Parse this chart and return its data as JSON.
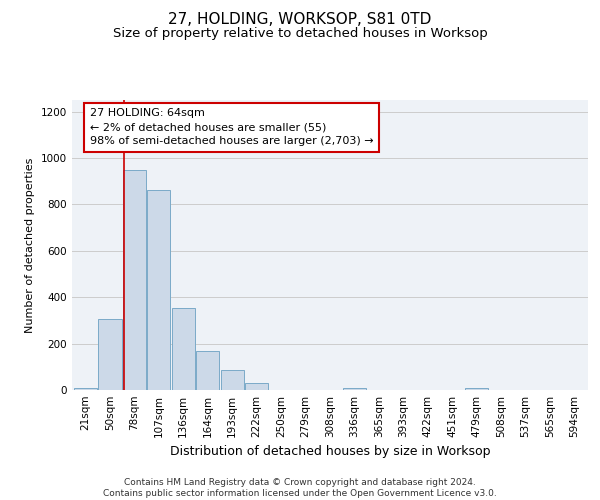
{
  "title1": "27, HOLDING, WORKSOP, S81 0TD",
  "title2": "Size of property relative to detached houses in Worksop",
  "xlabel": "Distribution of detached houses by size in Worksop",
  "ylabel": "Number of detached properties",
  "bin_labels": [
    "21sqm",
    "50sqm",
    "78sqm",
    "107sqm",
    "136sqm",
    "164sqm",
    "193sqm",
    "222sqm",
    "250sqm",
    "279sqm",
    "308sqm",
    "336sqm",
    "365sqm",
    "393sqm",
    "422sqm",
    "451sqm",
    "479sqm",
    "508sqm",
    "537sqm",
    "565sqm",
    "594sqm"
  ],
  "bar_values": [
    10,
    305,
    950,
    860,
    355,
    170,
    85,
    30,
    0,
    0,
    0,
    10,
    0,
    0,
    0,
    0,
    10,
    0,
    0,
    0,
    0
  ],
  "bar_color": "#ccd9e8",
  "bar_edge_color": "#7aaac8",
  "annotation_box_text": "27 HOLDING: 64sqm\n← 2% of detached houses are smaller (55)\n98% of semi-detached houses are larger (2,703) →",
  "annotation_box_color": "#ffffff",
  "annotation_box_edge_color": "#cc0000",
  "vline_x": 1.57,
  "vline_color": "#cc0000",
  "ylim": [
    0,
    1250
  ],
  "yticks": [
    0,
    200,
    400,
    600,
    800,
    1000,
    1200
  ],
  "grid_color": "#cccccc",
  "bg_color": "#eef2f7",
  "footer_text": "Contains HM Land Registry data © Crown copyright and database right 2024.\nContains public sector information licensed under the Open Government Licence v3.0.",
  "title1_fontsize": 11,
  "title2_fontsize": 9.5,
  "xlabel_fontsize": 9,
  "ylabel_fontsize": 8,
  "tick_fontsize": 7.5,
  "footer_fontsize": 6.5
}
